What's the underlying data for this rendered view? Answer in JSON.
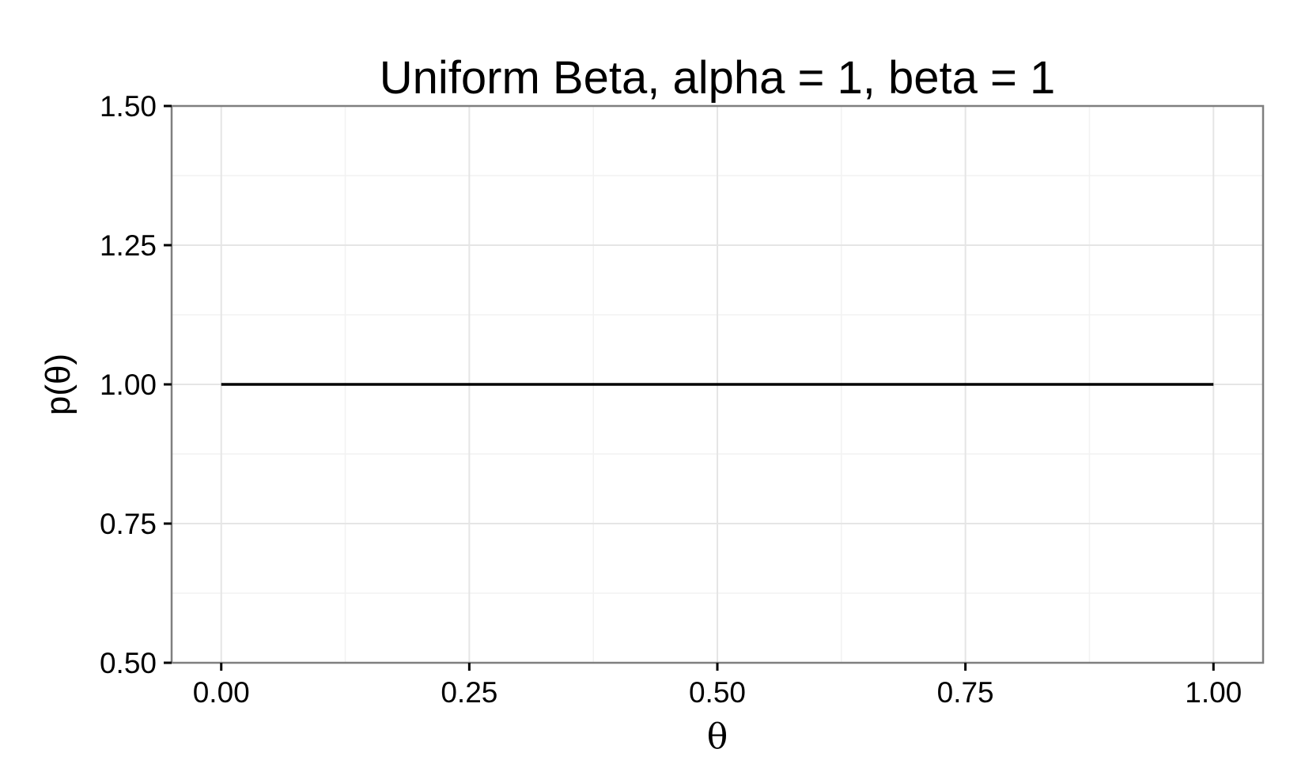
{
  "chart_data": {
    "type": "line",
    "title": "Uniform Beta, alpha = 1, beta = 1",
    "xlabel": "θ",
    "ylabel": "p(θ)",
    "xlim": [
      -0.05,
      1.05
    ],
    "ylim": [
      0.5,
      1.5
    ],
    "x_ticks": [
      0.0,
      0.25,
      0.5,
      0.75,
      1.0
    ],
    "x_tick_labels": [
      "0.00",
      "0.25",
      "0.50",
      "0.75",
      "1.00"
    ],
    "y_ticks": [
      0.5,
      0.75,
      1.0,
      1.25,
      1.5
    ],
    "y_tick_labels": [
      "0.50",
      "0.75",
      "1.00",
      "1.25",
      "1.50"
    ],
    "grid": true,
    "series": [
      {
        "x": [
          0.0,
          0.25,
          0.5,
          0.75,
          1.0
        ],
        "y": [
          1.0,
          1.0,
          1.0,
          1.0,
          1.0
        ],
        "color": "#000000"
      }
    ],
    "colors": {
      "panel_border": "#7f7f7f",
      "grid_major": "#e5e5e5",
      "grid_minor": "#f2f2f2",
      "line": "#000000"
    }
  }
}
